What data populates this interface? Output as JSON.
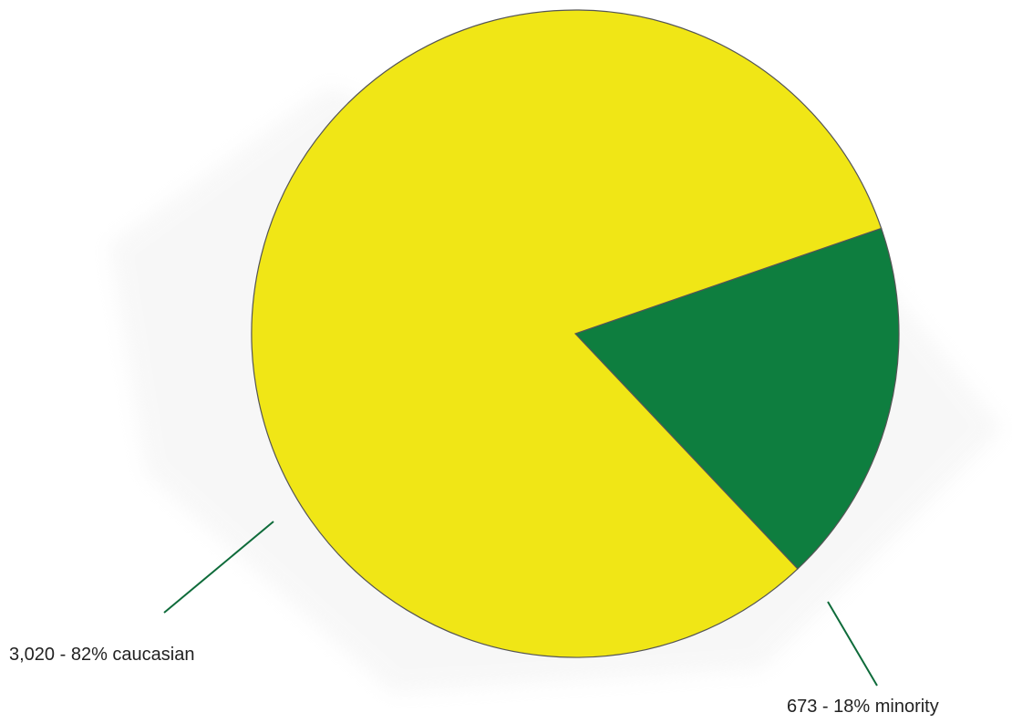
{
  "chart_data": {
    "type": "pie",
    "title": "",
    "slices": [
      {
        "name": "caucasian",
        "value": 3020,
        "percent": 82,
        "label": "3,020 - 82% caucasian",
        "color": "#F0E616"
      },
      {
        "name": "minority",
        "value": 673,
        "percent": 18,
        "label": "673 - 18% minority",
        "color": "#0E7E3F"
      }
    ],
    "leader_color": "#0E6B3A",
    "legend": "none"
  }
}
